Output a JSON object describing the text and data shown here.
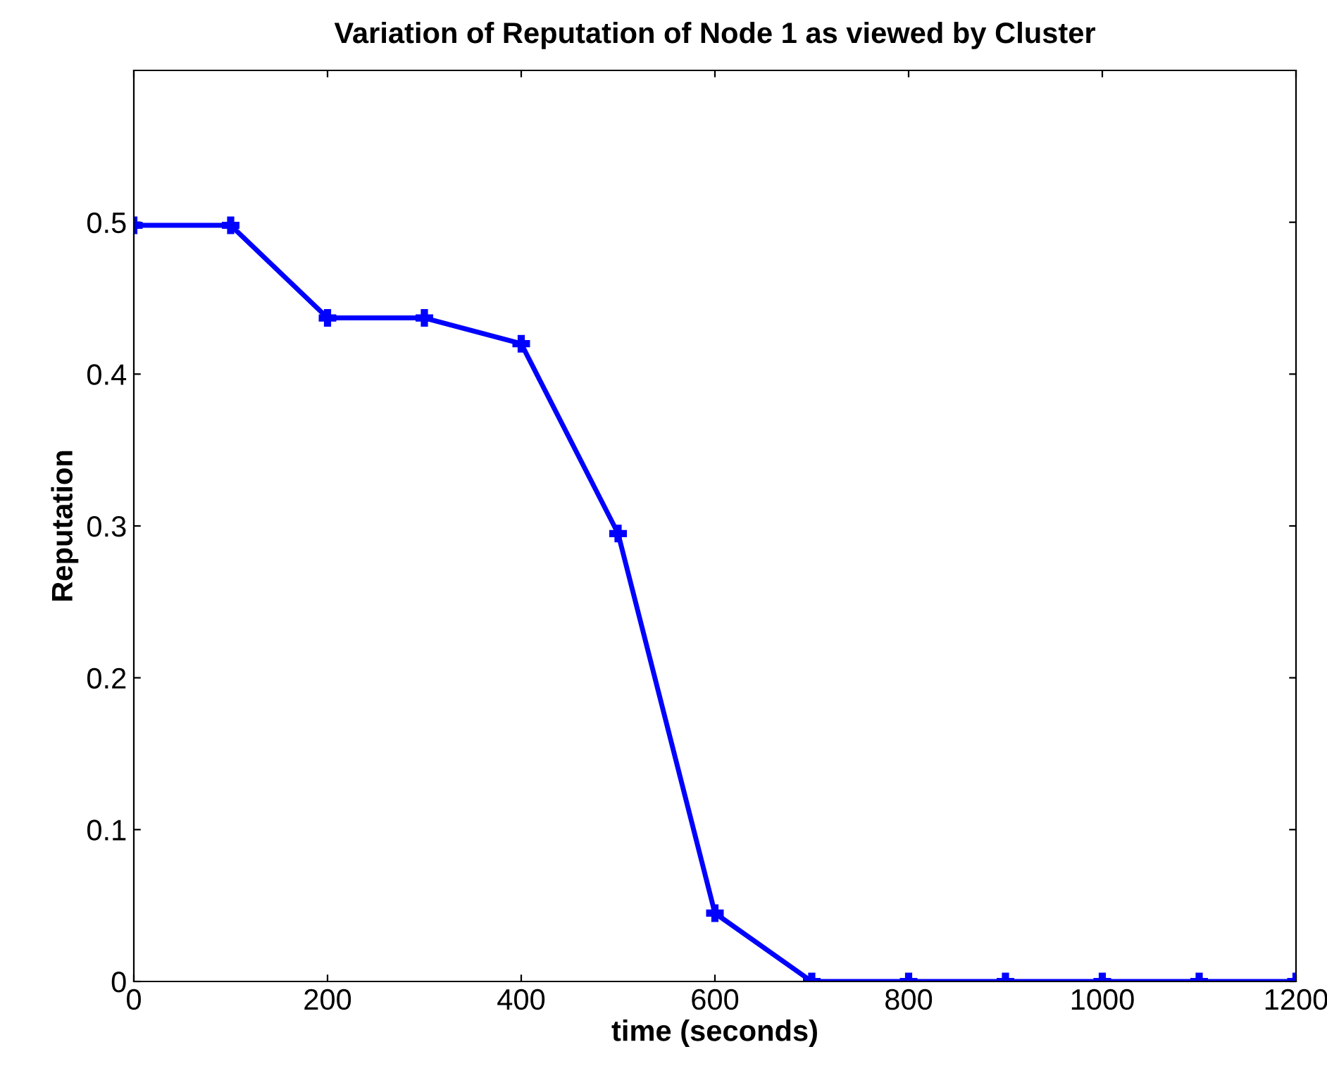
{
  "chart_data": {
    "type": "line",
    "title": "Variation of Reputation of Node 1 as viewed by Cluster",
    "xlabel": "time (seconds)",
    "ylabel": "Reputation",
    "x": [
      0,
      100,
      200,
      300,
      400,
      500,
      600,
      700,
      800,
      900,
      1000,
      1100,
      1200
    ],
    "series": [
      {
        "color": "#0000ff",
        "values": [
          0.498,
          0.498,
          0.437,
          0.437,
          0.42,
          0.295,
          0.045,
          0,
          0,
          0,
          0,
          0,
          0
        ]
      }
    ],
    "xlim": [
      0,
      1200
    ],
    "xticks": [
      0,
      200,
      400,
      600,
      800,
      1000,
      1200
    ],
    "ylim": [
      0,
      0.6
    ],
    "yticks": [
      0,
      0.1,
      0.2,
      0.3,
      0.4,
      0.5
    ],
    "grid": false,
    "legend": false,
    "marker": "cross",
    "line_style": "solid"
  }
}
